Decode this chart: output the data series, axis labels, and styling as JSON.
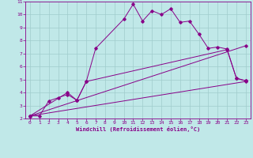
{
  "background_color": "#c0e8e8",
  "grid_color": "#a0cccc",
  "line_color": "#880088",
  "marker_color": "#880088",
  "xlabel": "Windchill (Refroidissement éolien,°C)",
  "xlim": [
    -0.5,
    23.5
  ],
  "ylim": [
    2,
    11
  ],
  "xticks": [
    0,
    1,
    2,
    3,
    4,
    5,
    6,
    7,
    8,
    9,
    10,
    11,
    12,
    13,
    14,
    15,
    16,
    17,
    18,
    19,
    20,
    21,
    22,
    23
  ],
  "yticks": [
    2,
    3,
    4,
    5,
    6,
    7,
    8,
    9,
    10,
    11
  ],
  "series1_x": [
    0,
    1,
    2,
    3,
    4,
    5,
    6,
    7,
    10,
    11,
    12,
    13,
    14,
    15,
    16,
    17,
    18,
    19,
    20,
    21,
    22,
    23
  ],
  "series1_y": [
    2.2,
    2.2,
    3.35,
    3.6,
    3.85,
    3.4,
    4.85,
    7.4,
    9.65,
    10.8,
    9.5,
    10.3,
    10.0,
    10.45,
    9.4,
    9.5,
    8.5,
    7.4,
    7.5,
    7.35,
    5.1,
    4.9
  ],
  "series2_x": [
    0,
    4,
    5,
    6,
    21,
    22,
    23
  ],
  "series2_y": [
    2.2,
    4.0,
    3.4,
    4.85,
    7.3,
    5.1,
    4.9
  ],
  "series3_x": [
    0,
    23
  ],
  "series3_y": [
    2.2,
    7.6
  ],
  "series4_x": [
    0,
    23
  ],
  "series4_y": [
    2.2,
    4.85
  ]
}
